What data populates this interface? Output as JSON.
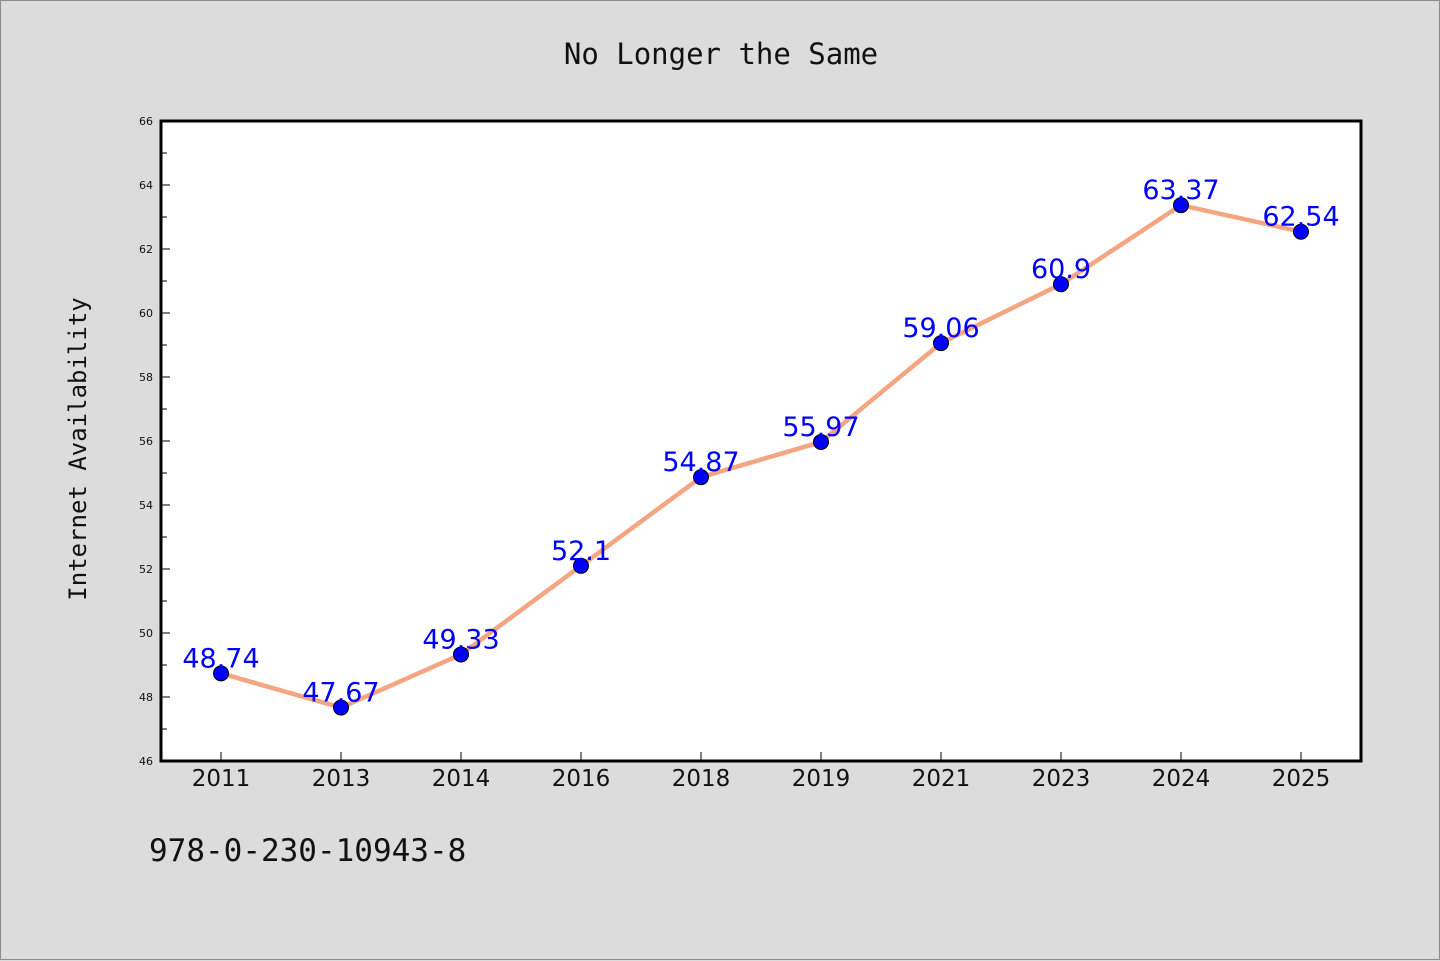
{
  "chart_data": {
    "type": "line",
    "title": "No Longer the Same",
    "xlabel": "",
    "ylabel": "Internet Availability",
    "categories": [
      "2011",
      "2013",
      "2014",
      "2016",
      "2018",
      "2019",
      "2021",
      "2023",
      "2024",
      "2025"
    ],
    "series": [
      {
        "values": [
          48.74,
          47.67,
          49.33,
          52.1,
          54.87,
          55.97,
          59.06,
          60.9,
          63.37,
          62.54
        ],
        "labels": [
          "48.74",
          "47.67",
          "49.33",
          "52.1",
          "54.87",
          "55.97",
          "59.06",
          "60.9",
          "63.37",
          "62.54"
        ]
      }
    ],
    "ylim": [
      46,
      66
    ],
    "yticks": [
      "46",
      "48",
      "50",
      "52",
      "54",
      "56",
      "58",
      "60",
      "62",
      "64",
      "66"
    ],
    "grid": false,
    "legend": "none",
    "colors": {
      "line": "#f4a582",
      "marker": "#0000ff",
      "data_label": "#0000ff",
      "plot_background": "#ffffff",
      "page_background": "#dcdcdc"
    }
  },
  "footer": {
    "code": "978-0-230-10943-8"
  }
}
